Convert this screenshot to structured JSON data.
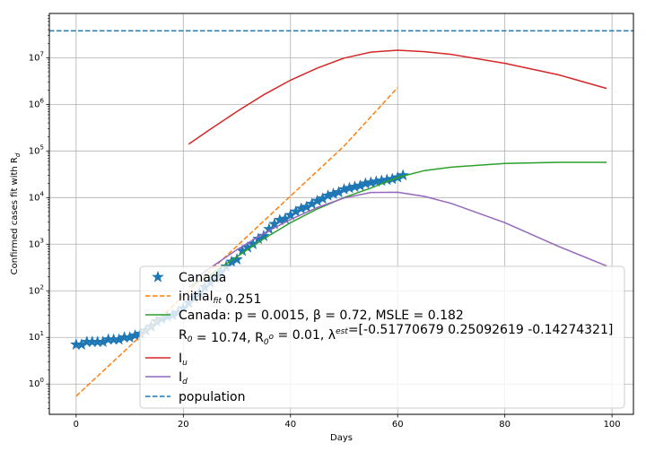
{
  "chart_data": {
    "type": "line",
    "xlabel": "Days",
    "ylabel": "Confirmed cases fit with R_d",
    "xlim": [
      -5,
      104
    ],
    "ylim_log10": [
      -0.65,
      7.95
    ],
    "yscale": "log",
    "grid": true,
    "x_ticks": [
      0,
      20,
      40,
      60,
      80,
      100
    ],
    "y_ticks": [
      {
        "exp": 0,
        "label": "10^0"
      },
      {
        "exp": 1,
        "label": "10^1"
      },
      {
        "exp": 2,
        "label": "10^2"
      },
      {
        "exp": 3,
        "label": "10^3"
      },
      {
        "exp": 4,
        "label": "10^4"
      },
      {
        "exp": 5,
        "label": "10^5"
      },
      {
        "exp": 6,
        "label": "10^6"
      },
      {
        "exp": 7,
        "label": "10^7"
      }
    ],
    "legend_position": "lower-center",
    "legend": {
      "canada": "Canada",
      "initial_fit": "initial_fit 0.251",
      "fit_line1": "Canada: p = 0.0015,  β =  0.72, MSLE = 0.182",
      "fit_line2": " R_0 = 10.74, R_0^o = 0.01, λ^est=[-0.51770679  0.25092619 -0.14274321]",
      "i_u": "I_u",
      "i_d": "I_d",
      "population": "population"
    },
    "colors": {
      "canada": "#1f77b4",
      "initial_fit": "#ff7f0e",
      "fit": "#2ca02c",
      "i_u": "#d62728",
      "i_d": "#9467bd",
      "population": "#1f77b4"
    },
    "series": [
      {
        "key": "canada",
        "style": "markers",
        "x": [
          0,
          1,
          2,
          3,
          4,
          5,
          6,
          7,
          8,
          9,
          10,
          11,
          12,
          13,
          14,
          15,
          16,
          17,
          18,
          19,
          20,
          21,
          22,
          23,
          24,
          25,
          26,
          27,
          28,
          29,
          30,
          31,
          32,
          33,
          34,
          35,
          36,
          37,
          38,
          39,
          40,
          41,
          42,
          43,
          44,
          45,
          46,
          47,
          48,
          49,
          50,
          51,
          52,
          53,
          54,
          55,
          56,
          57,
          58,
          59,
          60,
          61
        ],
        "y": [
          7,
          7,
          8,
          8,
          8,
          8,
          9,
          9,
          9,
          10,
          10,
          11,
          12,
          14,
          17,
          22,
          25,
          28,
          30,
          34,
          42,
          55,
          70,
          90,
          120,
          150,
          190,
          250,
          330,
          420,
          470,
          720,
          850,
          1000,
          1300,
          1500,
          2100,
          2700,
          3300,
          3500,
          4200,
          5000,
          5800,
          6300,
          7300,
          8500,
          9500,
          11000,
          12000,
          13000,
          15000,
          16000,
          17000,
          18000,
          20000,
          21000,
          22000,
          23000,
          24000,
          25000,
          27000,
          30000
        ]
      },
      {
        "key": "initial_fit",
        "style": "dashed",
        "x": [
          0,
          10,
          20,
          30,
          40,
          50,
          60
        ],
        "y": [
          0.55,
          6.5,
          77,
          910,
          10800,
          128000,
          2300000
        ]
      },
      {
        "key": "fit",
        "style": "solid",
        "x": [
          21,
          25,
          30,
          35,
          40,
          45,
          50,
          55,
          60,
          65,
          70,
          80,
          90,
          99
        ],
        "y": [
          120,
          220,
          540,
          1300,
          2900,
          5700,
          10000,
          16000,
          27000,
          38000,
          45000,
          54000,
          57000,
          57000
        ]
      },
      {
        "key": "i_u",
        "style": "solid",
        "x": [
          21,
          25,
          30,
          35,
          40,
          45,
          50,
          55,
          60,
          65,
          70,
          80,
          90,
          99
        ],
        "y": [
          140000,
          290000,
          700000,
          1600000,
          3300000,
          6000000,
          9800000,
          13200000,
          14500000,
          13500000,
          11800000,
          7600000,
          4300000,
          2200000
        ]
      },
      {
        "key": "i_d",
        "style": "solid",
        "x": [
          21,
          25,
          30,
          35,
          40,
          45,
          50,
          55,
          60,
          65,
          70,
          80,
          90,
          99
        ],
        "y": [
          150,
          310,
          760,
          1700,
          3400,
          6100,
          9800,
          12900,
          13000,
          10600,
          7500,
          2900,
          900,
          340
        ]
      },
      {
        "key": "population",
        "style": "dashed",
        "x": [
          -5,
          104
        ],
        "y": [
          37800000,
          37800000
        ]
      }
    ]
  }
}
